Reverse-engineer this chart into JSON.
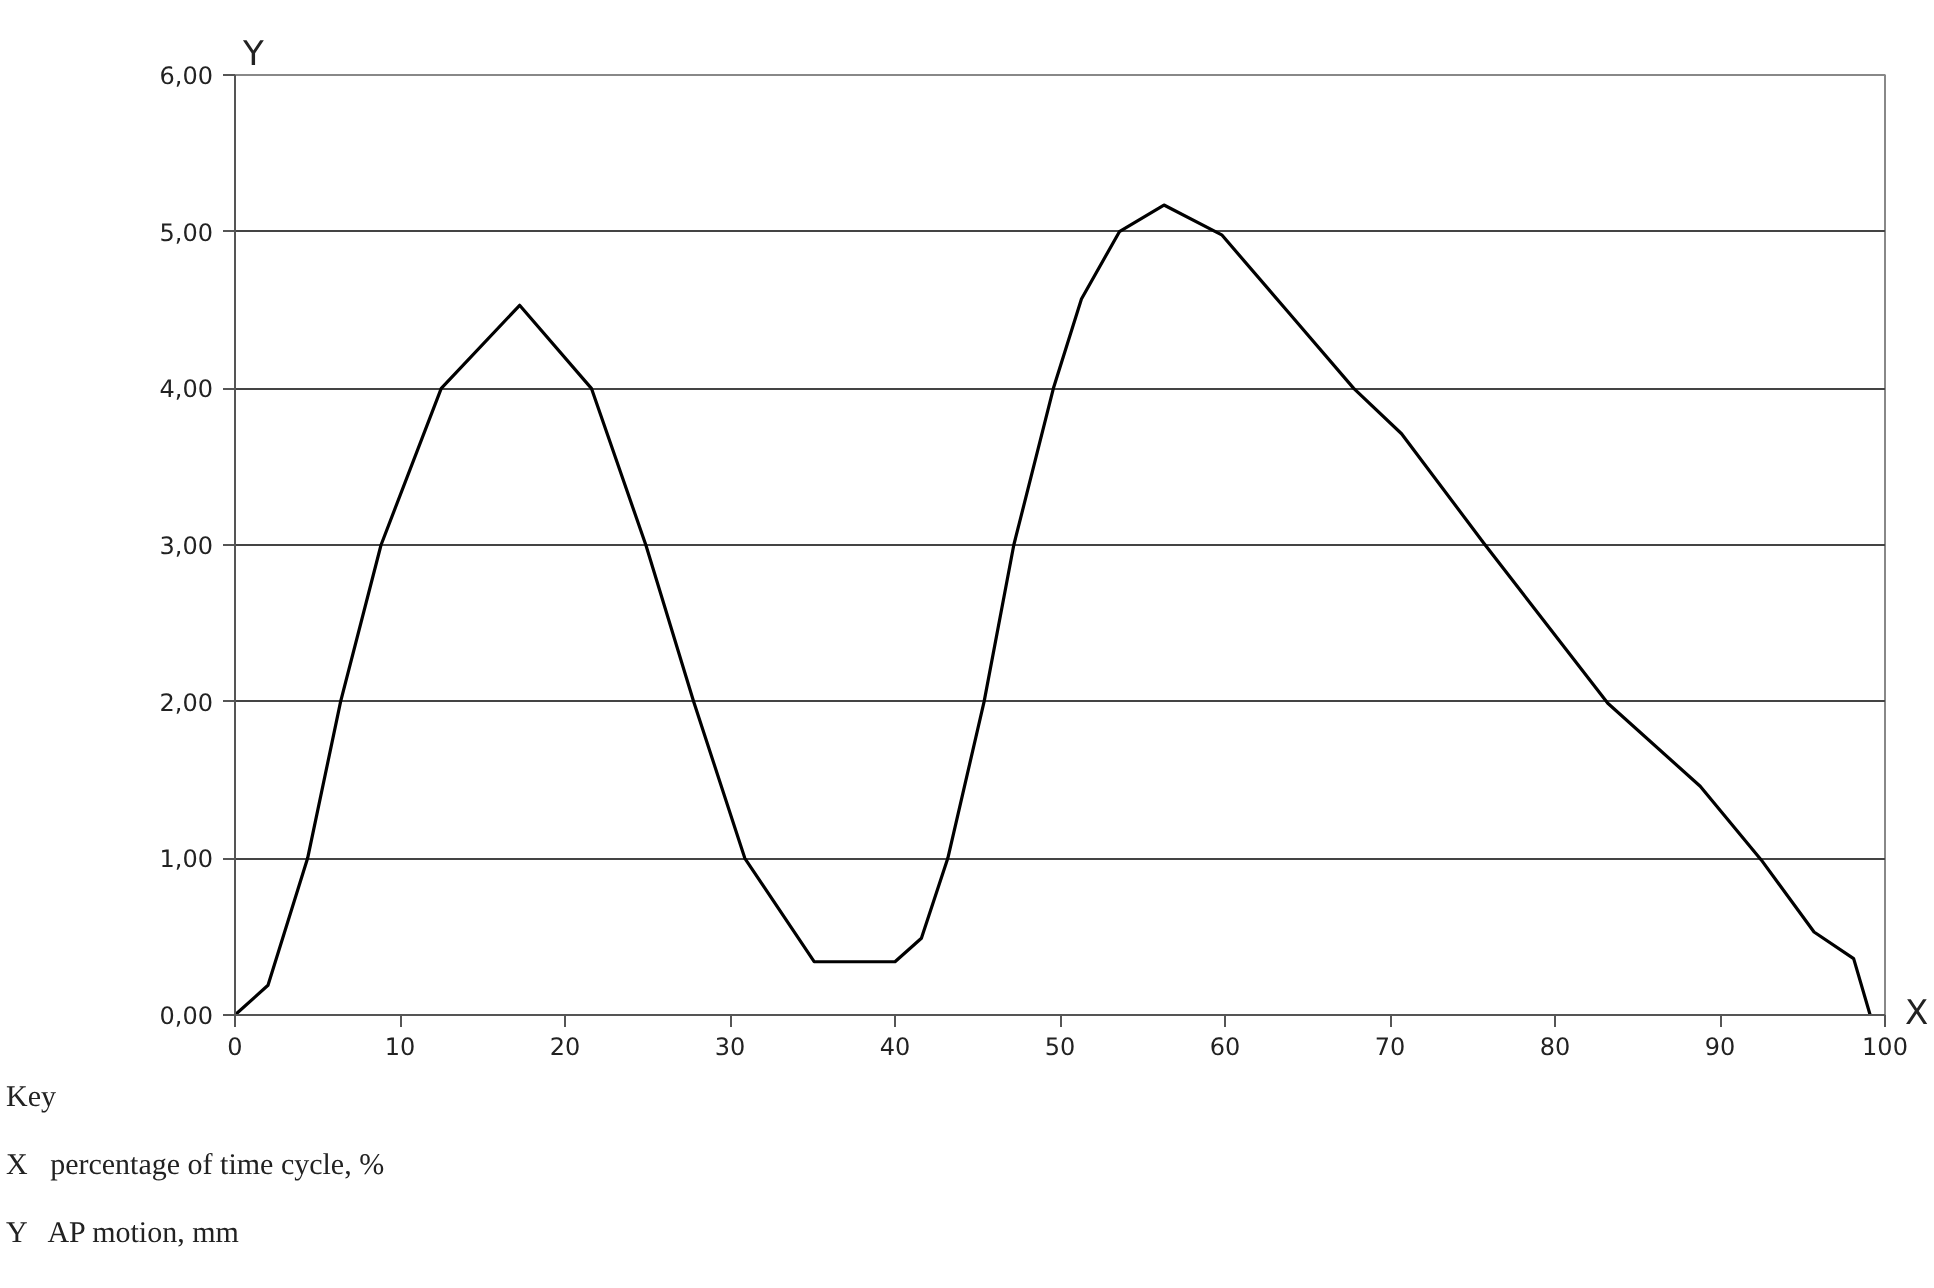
{
  "chart_data": {
    "type": "line",
    "xlabel": "X",
    "ylabel": "Y",
    "x": [
      0,
      2.0,
      4.4,
      6.4,
      8.85,
      12.5,
      17.25,
      21.6,
      24.9,
      27.8,
      30.9,
      35.1,
      36.7,
      40.0,
      41.6,
      43.2,
      45.4,
      47.2,
      49.6,
      51.3,
      53.6,
      56.3,
      59.8,
      63.8,
      67.8,
      70.7,
      75.7,
      83.2,
      88.8,
      92.5,
      95.7,
      98.1,
      99.1
    ],
    "series": [
      {
        "color": "#000000",
        "values": [
          0,
          0.19,
          1.0,
          2.0,
          3.0,
          4.0,
          4.53,
          4.0,
          3.0,
          2.0,
          1.0,
          0.34,
          0.34,
          0.34,
          0.49,
          1.0,
          2.0,
          3.0,
          4.0,
          4.57,
          5.0,
          5.17,
          4.98,
          4.49,
          4.0,
          3.71,
          3.01,
          1.99,
          1.46,
          0.99,
          0.53,
          0.36,
          0.0
        ]
      }
    ],
    "xlim": [
      0,
      100
    ],
    "ylim": [
      0,
      6
    ],
    "xticks": [
      0,
      10,
      20,
      30,
      40,
      50,
      60,
      70,
      80,
      90,
      100
    ],
    "yticks": [
      {
        "value": 0,
        "label": "0,00"
      },
      {
        "value": 1,
        "label": "1,00"
      },
      {
        "value": 2,
        "label": "2,00"
      },
      {
        "value": 3,
        "label": "3,00"
      },
      {
        "value": 4,
        "label": "4,00"
      },
      {
        "value": 5,
        "label": "5,00"
      },
      {
        "value": 6,
        "label": "6,00"
      }
    ],
    "grid": "y",
    "marker": "none",
    "line_style": "solid",
    "annotations": [
      "Key",
      "X   percentage of time cycle, %",
      "Y   AP motion, mm"
    ]
  }
}
